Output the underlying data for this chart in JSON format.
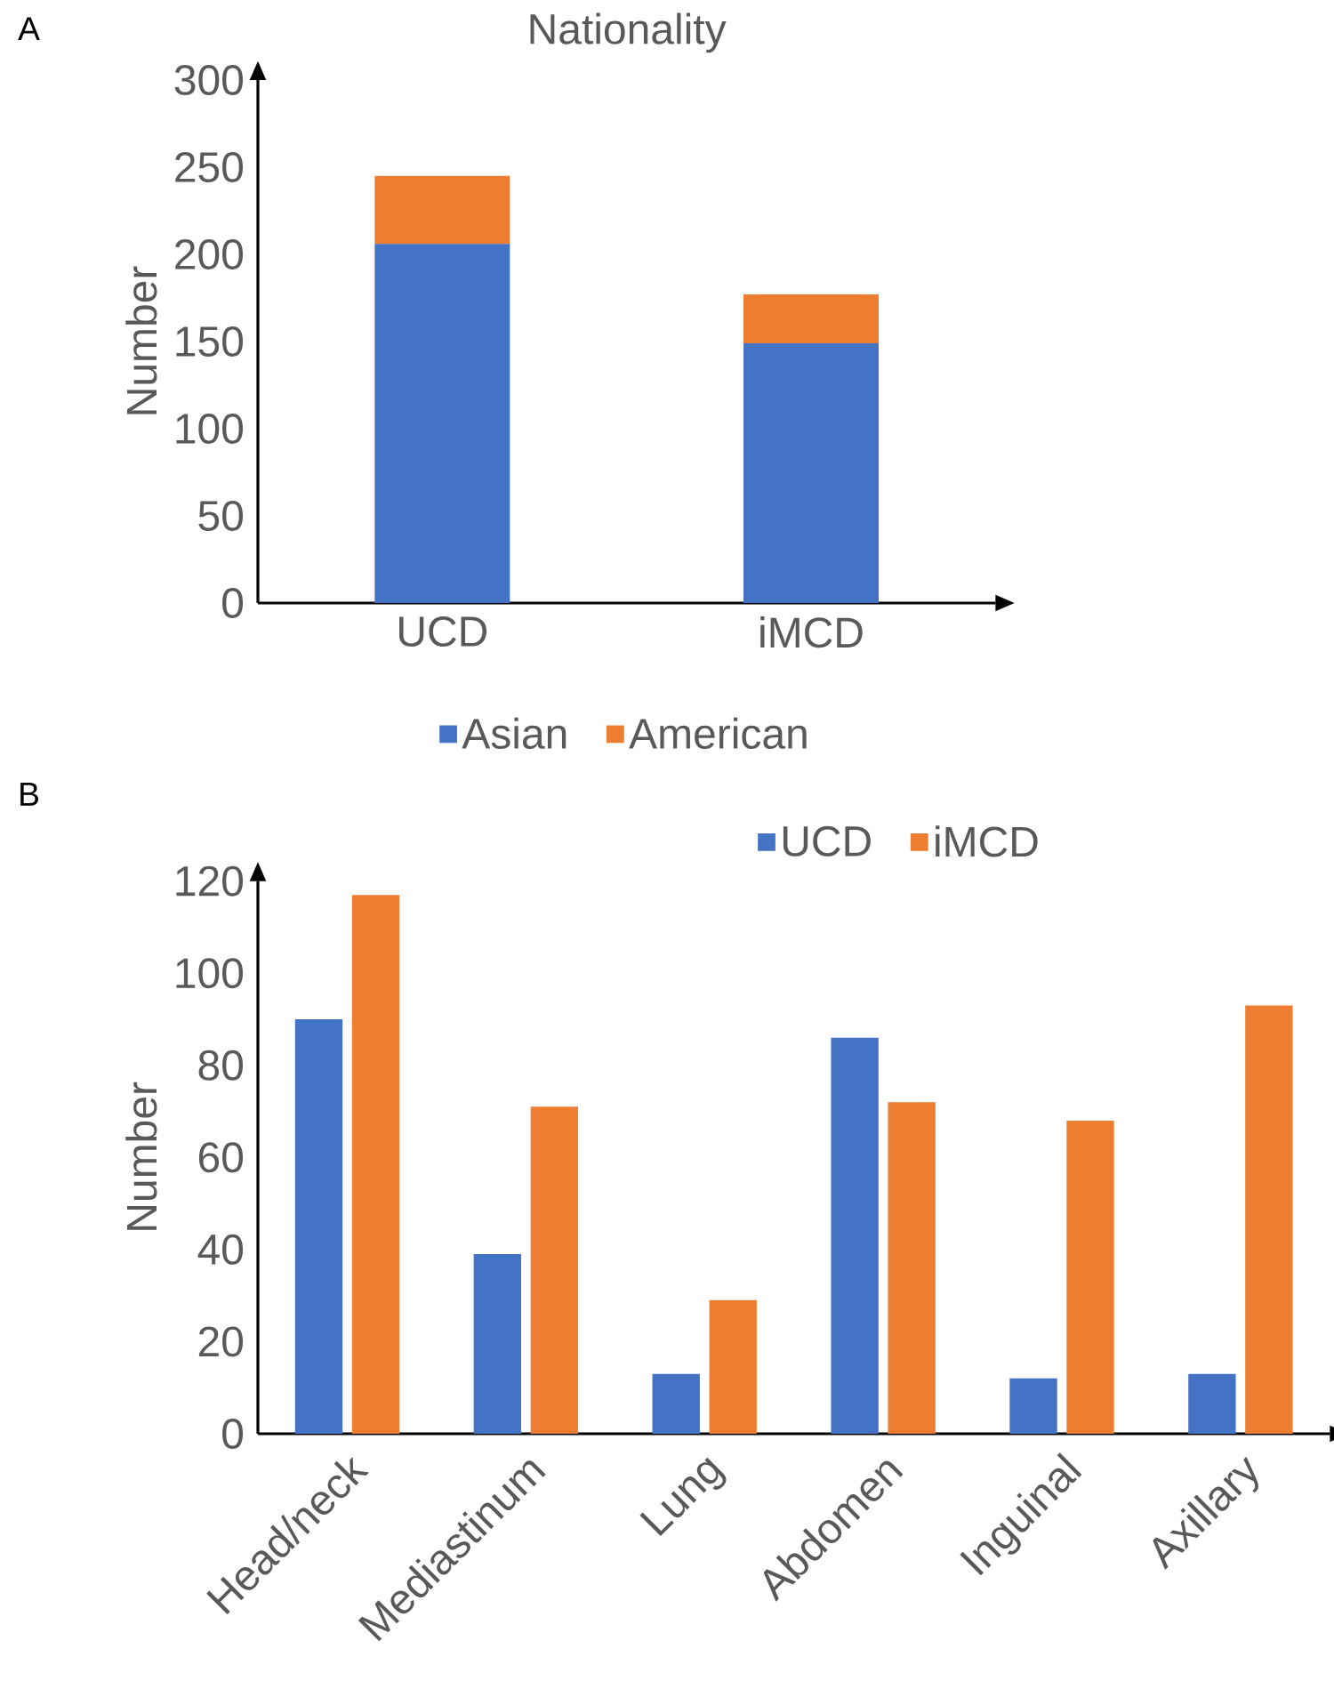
{
  "chart_data": [
    {
      "type": "bar",
      "title": "Nationality",
      "ylabel": "Number",
      "stacked": true,
      "legend": "bottom",
      "grid": false,
      "categories": [
        "UCD",
        "iMCD"
      ],
      "series": [
        {
          "name": "Asian",
          "color": "#4472c4",
          "values": [
            206,
            149
          ]
        },
        {
          "name": "American",
          "color": "#ed7d31",
          "values": [
            39,
            28
          ]
        }
      ],
      "ylim": [
        0,
        300
      ],
      "yticks": [
        0,
        50,
        100,
        150,
        200,
        250,
        300
      ],
      "annotations": [
        "A"
      ]
    },
    {
      "type": "bar",
      "ylabel": "Number",
      "legend": "top",
      "grid": false,
      "categories": [
        "Head/neck",
        "Mediastinum",
        "Lung",
        "Abdomen",
        "Inguinal",
        "Axillary"
      ],
      "series": [
        {
          "name": "UCD",
          "color": "#4472c4",
          "values": [
            90,
            39,
            13,
            86,
            12,
            13
          ]
        },
        {
          "name": "iMCD",
          "color": "#ed7d31",
          "values": [
            117,
            71,
            29,
            72,
            68,
            93
          ]
        }
      ],
      "ylim": [
        0,
        120
      ],
      "yticks": [
        0,
        20,
        40,
        60,
        80,
        100,
        120
      ],
      "annotations": [
        "B"
      ]
    }
  ]
}
